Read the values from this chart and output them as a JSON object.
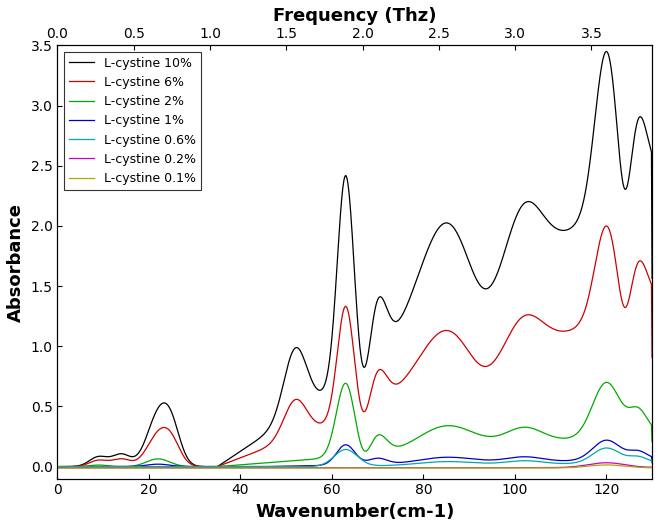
{
  "title_top": "Frequency (Thz)",
  "xlabel": "Wavenumber(cm-1)",
  "ylabel": "Absorbance",
  "xlim": [
    0,
    130
  ],
  "ylim": [
    -0.1,
    3.5
  ],
  "x_top_ticks": [
    0.0,
    0.5,
    1.0,
    1.5,
    2.0,
    2.5,
    3.0,
    3.5
  ],
  "yticks": [
    0.0,
    0.5,
    1.0,
    1.5,
    2.0,
    2.5,
    3.0,
    3.5
  ],
  "xticks": [
    0,
    20,
    40,
    60,
    80,
    100,
    120
  ],
  "lines": [
    {
      "label": "L-cystine 10%",
      "color": "#000000"
    },
    {
      "label": "L-cystine 6%",
      "color": "#cc0000"
    },
    {
      "label": "L-cystine 2%",
      "color": "#00aa00"
    },
    {
      "label": "L-cystine 1%",
      "color": "#0000cc"
    },
    {
      "label": "L-cystine 0.6%",
      "color": "#00aaaa"
    },
    {
      "label": "L-cystine 0.2%",
      "color": "#cc00cc"
    },
    {
      "label": "L-cystine 0.1%",
      "color": "#aaaa00"
    }
  ],
  "background": "#ffffff"
}
